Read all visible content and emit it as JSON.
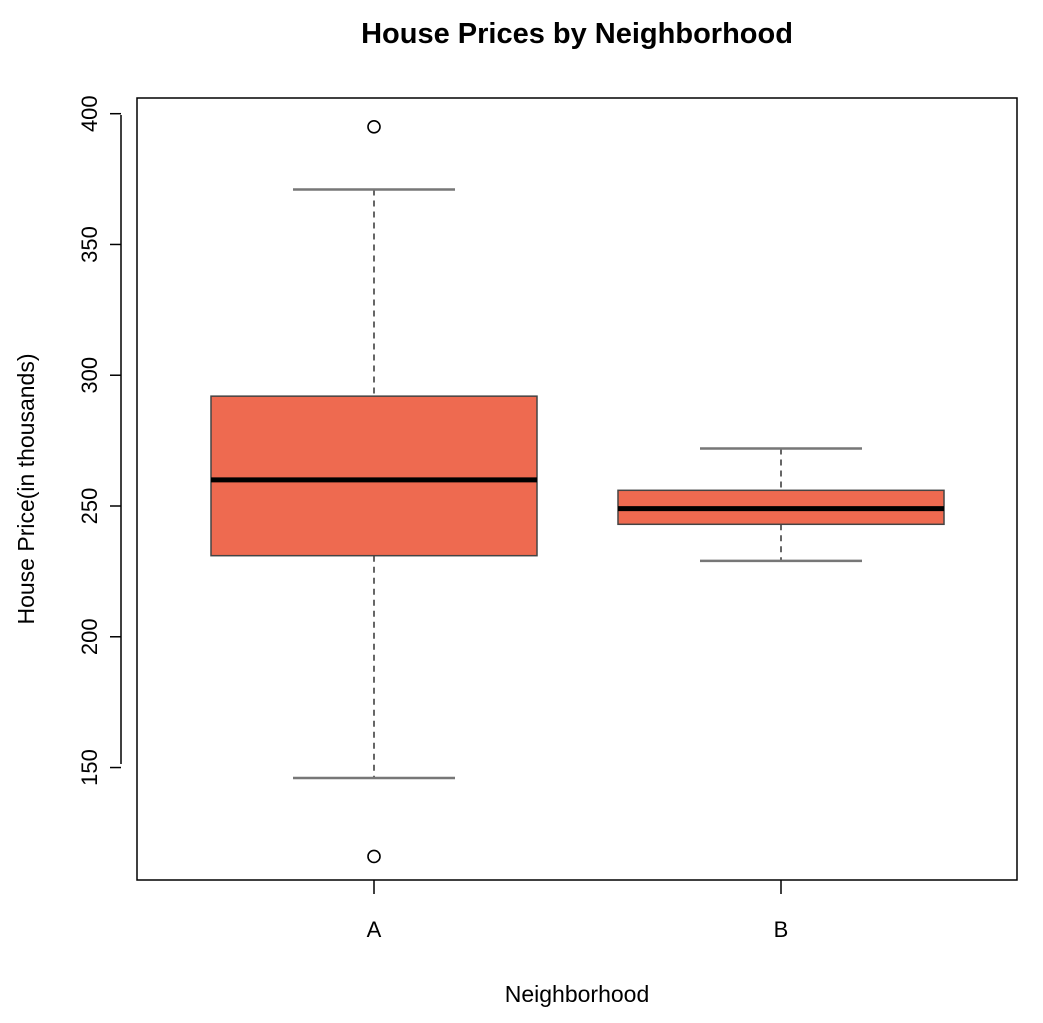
{
  "chart_data": {
    "type": "boxplot",
    "title": "House Prices by Neighborhood",
    "xlabel": "Neighborhood",
    "ylabel": "House Price(in thousands)",
    "ylim": [
      107,
      406
    ],
    "yticks": [
      150,
      200,
      250,
      300,
      350,
      400
    ],
    "categories": [
      "A",
      "B"
    ],
    "boxes": [
      {
        "category": "A",
        "whisker_low": 146,
        "q1": 231,
        "median": 260,
        "q3": 292,
        "whisker_high": 371,
        "outliers": [
          395,
          116
        ]
      },
      {
        "category": "B",
        "whisker_low": 229,
        "q1": 243,
        "median": 249,
        "q3": 256,
        "whisker_high": 272,
        "outliers": []
      }
    ],
    "box_fill": "#EE6A50",
    "grid": false,
    "legend": "none"
  }
}
